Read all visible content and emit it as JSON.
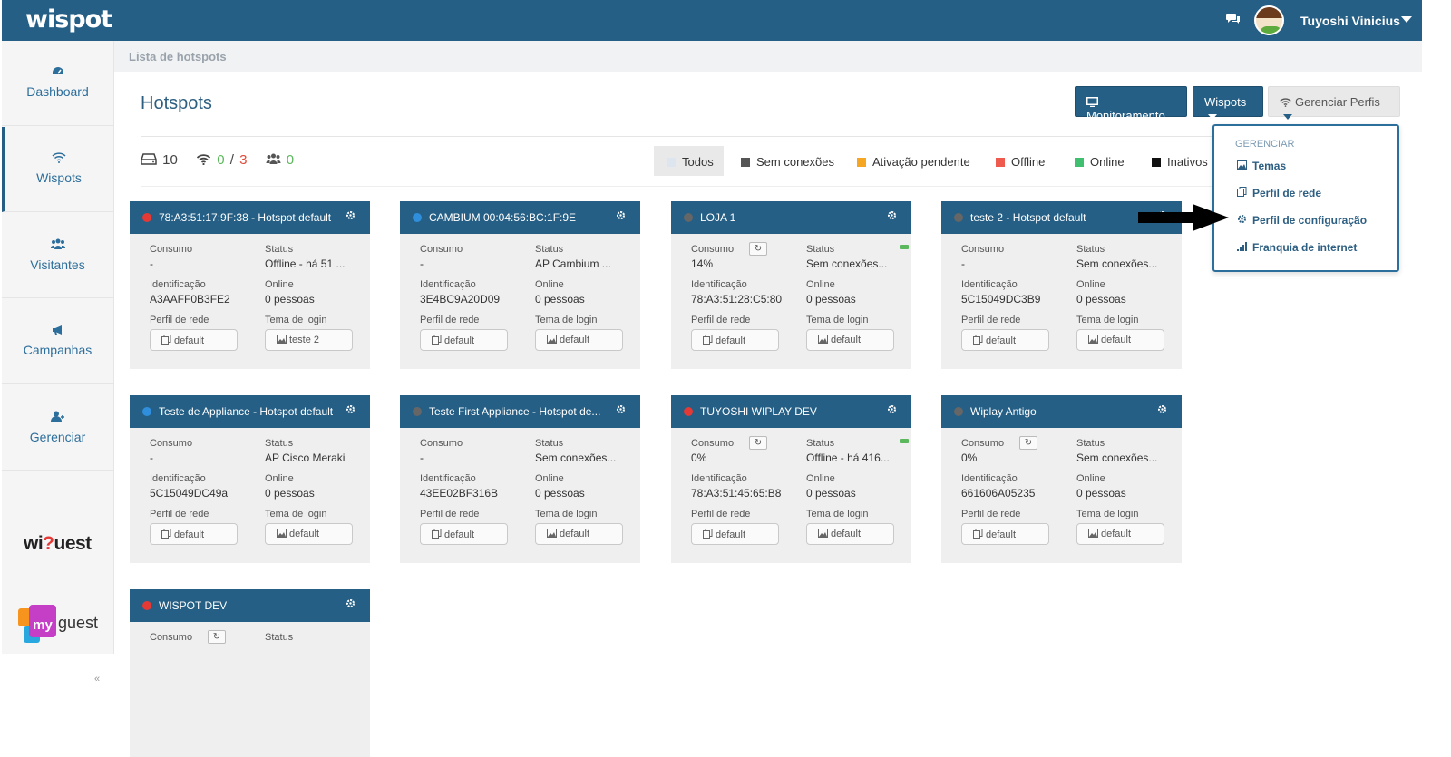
{
  "topbar": {
    "logo": "wispot",
    "user_name": "Tuyoshi Vinicius",
    "chat_icon": "comments-icon"
  },
  "sidebar": {
    "items": [
      {
        "label": "Dashboard",
        "icon": "gauge-icon"
      },
      {
        "label": "Wispots",
        "icon": "wifi-icon"
      },
      {
        "label": "Visitantes",
        "icon": "users-icon"
      },
      {
        "label": "Campanhas",
        "icon": "bullhorn-icon"
      },
      {
        "label": "Gerenciar",
        "icon": "user-plus-icon"
      }
    ],
    "wiquest_logo_a": "wi",
    "wiquest_logo_q": "?",
    "wiquest_logo_b": "uest",
    "myguest_my": "my",
    "myguest_guest": "guest",
    "collapse_glyph": "«"
  },
  "breadcrumb": "Lista de hotspots",
  "page_title": "Hotspots",
  "header_buttons": {
    "monitoramento": "Monitoramento",
    "wispots": "Wispots",
    "gerenciar": "Gerenciar Perfis"
  },
  "stats": {
    "hotspots": "10",
    "online": "0",
    "separator": "/",
    "offline": "3",
    "visitors": "0"
  },
  "filters": [
    {
      "label": "Todos",
      "color": "#dde6ee"
    },
    {
      "label": "Sem conexões",
      "color": "#555555"
    },
    {
      "label": "Ativação pendente",
      "color": "#f5a623"
    },
    {
      "label": "Offline",
      "color": "#ef5a4f"
    },
    {
      "label": "Online",
      "color": "#3fbf6f"
    },
    {
      "label": "Inativos",
      "color": "#111111"
    }
  ],
  "card_labels": {
    "consumo": "Consumo",
    "status": "Status",
    "identificacao": "Identificação",
    "online": "Online",
    "perfil": "Perfil de rede",
    "tema": "Tema de login"
  },
  "cards": [
    {
      "title": "78:A3:51:17:9F:38 - Hotspot default",
      "dot": "#e53935",
      "consumo": "-",
      "status": "Offline - há 51 ...",
      "id": "A3AAFF0B3FE2",
      "online": "0 pessoas",
      "perfil": "default",
      "tema": "teste 2"
    },
    {
      "title": "CAMBIUM 00:04:56:BC:1F:9E",
      "dot": "#2f8fdc",
      "consumo": "-",
      "status": "AP Cambium ...",
      "id": "3E4BC9A20D09",
      "online": "0 pessoas",
      "perfil": "default",
      "tema": "default"
    },
    {
      "title": "LOJA 1",
      "dot": "#666666",
      "consumo": "14%",
      "status": "Sem conexões...",
      "id": "78:A3:51:28:C5:80",
      "online": "0 pessoas",
      "perfil": "default",
      "tema": "default"
    },
    {
      "title": "teste 2 - Hotspot default",
      "dot": "#666666",
      "consumo": "-",
      "status": "Sem conexões...",
      "id": "5C15049DC3B9",
      "online": "0 pessoas",
      "perfil": "default",
      "tema": "default"
    },
    {
      "title": "Teste de Appliance - Hotspot default",
      "dot": "#2f8fdc",
      "consumo": "-",
      "status": "AP Cisco Meraki",
      "id": "5C15049DC49a",
      "online": "0 pessoas",
      "perfil": "default",
      "tema": "default"
    },
    {
      "title": "Teste First Appliance - Hotspot de...",
      "dot": "#666666",
      "consumo": "-",
      "status": "Sem conexões...",
      "id": "43EE02BF316B",
      "online": "0 pessoas",
      "perfil": "default",
      "tema": "default"
    },
    {
      "title": "TUYOSHI WIPLAY DEV",
      "dot": "#e53935",
      "consumo": "0%",
      "status": "Offline - há 416...",
      "id": "78:A3:51:45:65:B8",
      "online": "0 pessoas",
      "perfil": "default",
      "tema": "default"
    },
    {
      "title": "Wiplay Antigo",
      "dot": "#666666",
      "consumo": "0%",
      "status": "Sem conexões...",
      "id": "661606A05235",
      "online": "0 pessoas",
      "perfil": "default",
      "tema": "default"
    },
    {
      "title": "WISPOT DEV",
      "dot": "#e53935",
      "consumo": "",
      "status": "",
      "id": "",
      "online": "",
      "perfil": "",
      "tema": ""
    }
  ],
  "dropdown": {
    "header": "GERENCIAR",
    "items": [
      {
        "label": "Temas",
        "icon": "image-icon"
      },
      {
        "label": "Perfil de rede",
        "icon": "copy-icon"
      },
      {
        "label": "Perfil de configuração",
        "icon": "gear-icon"
      },
      {
        "label": "Franquia de internet",
        "icon": "signal-icon"
      }
    ]
  },
  "colors": {
    "primary": "#255f85",
    "card_bg": "#efefef"
  }
}
